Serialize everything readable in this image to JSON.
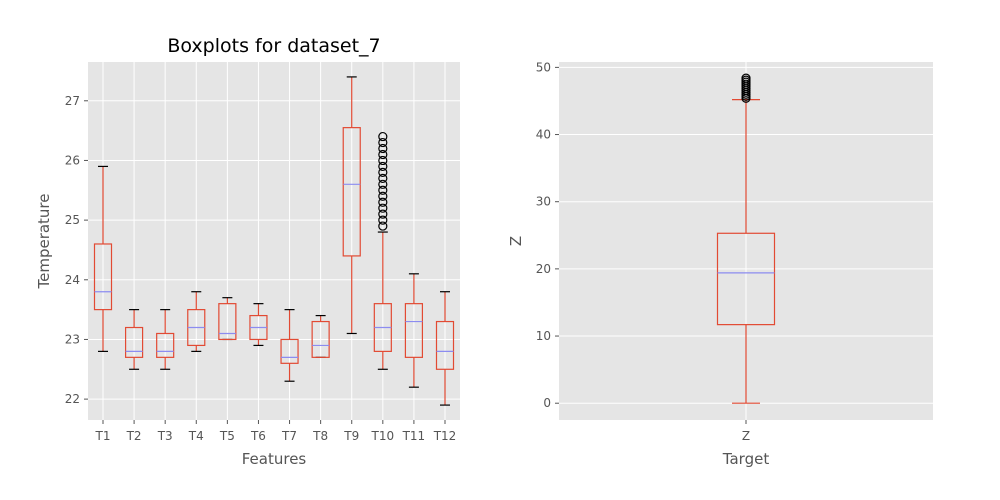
{
  "chart_data": [
    {
      "type": "box",
      "title": "Boxplots for dataset_7",
      "xlabel": "Features",
      "ylabel": "Temperature",
      "ylim": [
        21.65,
        27.65
      ],
      "yticks": [
        22,
        23,
        24,
        25,
        26,
        27
      ],
      "categories": [
        "T1",
        "T2",
        "T3",
        "T4",
        "T5",
        "T6",
        "T7",
        "T8",
        "T9",
        "T10",
        "T11",
        "T12"
      ],
      "boxes": [
        {
          "whisker_low": 22.8,
          "q1": 23.5,
          "median": 23.8,
          "q3": 24.6,
          "whisker_high": 25.9,
          "outliers": []
        },
        {
          "whisker_low": 22.5,
          "q1": 22.7,
          "median": 22.8,
          "q3": 23.2,
          "whisker_high": 23.5,
          "outliers": []
        },
        {
          "whisker_low": 22.5,
          "q1": 22.7,
          "median": 22.8,
          "q3": 23.1,
          "whisker_high": 23.5,
          "outliers": []
        },
        {
          "whisker_low": 22.8,
          "q1": 22.9,
          "median": 23.2,
          "q3": 23.5,
          "whisker_high": 23.8,
          "outliers": []
        },
        {
          "whisker_low": 23.0,
          "q1": 23.0,
          "median": 23.1,
          "q3": 23.6,
          "whisker_high": 23.7,
          "outliers": []
        },
        {
          "whisker_low": 22.9,
          "q1": 23.0,
          "median": 23.2,
          "q3": 23.4,
          "whisker_high": 23.6,
          "outliers": []
        },
        {
          "whisker_low": 22.3,
          "q1": 22.6,
          "median": 22.7,
          "q3": 23.0,
          "whisker_high": 23.5,
          "outliers": []
        },
        {
          "whisker_low": 22.7,
          "q1": 22.7,
          "median": 22.9,
          "q3": 23.3,
          "whisker_high": 23.4,
          "outliers": []
        },
        {
          "whisker_low": 23.1,
          "q1": 24.4,
          "median": 25.6,
          "q3": 26.55,
          "whisker_high": 27.4,
          "outliers": []
        },
        {
          "whisker_low": 22.5,
          "q1": 22.8,
          "median": 23.2,
          "q3": 23.6,
          "whisker_high": 24.8,
          "outliers": [
            24.9,
            25.0,
            25.1,
            25.2,
            25.3,
            25.4,
            25.5,
            25.6,
            25.7,
            25.8,
            25.9,
            26.0,
            26.1,
            26.2,
            26.3,
            26.4
          ]
        },
        {
          "whisker_low": 22.2,
          "q1": 22.7,
          "median": 23.3,
          "q3": 23.6,
          "whisker_high": 24.1,
          "outliers": []
        },
        {
          "whisker_low": 21.9,
          "q1": 22.5,
          "median": 22.8,
          "q3": 23.3,
          "whisker_high": 23.8,
          "outliers": []
        }
      ]
    },
    {
      "type": "box",
      "title": "",
      "xlabel": "Target",
      "ylabel": "Z",
      "ylim": [
        -2.5,
        50.8
      ],
      "yticks": [
        0,
        10,
        20,
        30,
        40,
        50
      ],
      "categories": [
        "Z"
      ],
      "boxes": [
        {
          "whisker_low": 0.0,
          "q1": 11.7,
          "median": 19.4,
          "q3": 25.3,
          "whisker_high": 45.2,
          "outliers": [
            45.4,
            45.7,
            46.0,
            46.3,
            46.6,
            46.9,
            47.2,
            47.5,
            47.8,
            48.1,
            48.4
          ]
        }
      ]
    }
  ],
  "colors": {
    "background": "#e5e5e5",
    "grid": "#ffffff",
    "box": "#e24a33",
    "median": "#8c8cf0",
    "whisker_cap": "#000000",
    "outlier": "#000000"
  }
}
